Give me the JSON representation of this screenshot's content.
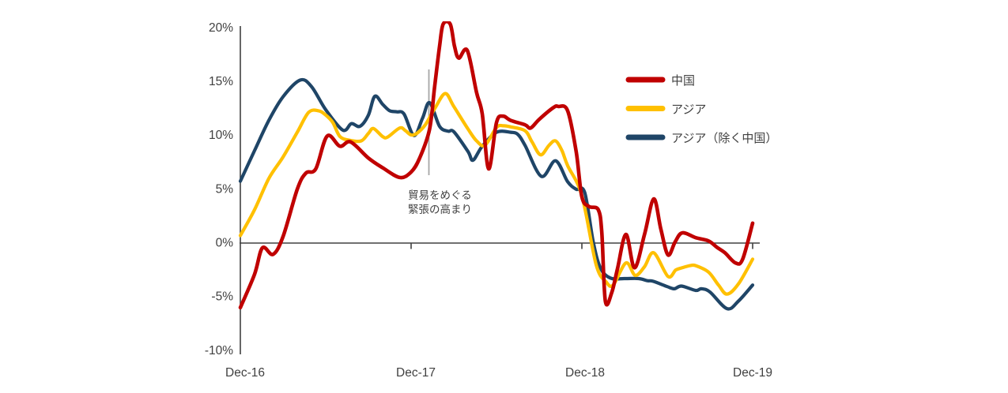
{
  "chart": {
    "y_axis": {
      "tick_labels": [
        "20%",
        "15%",
        "10%",
        "5%",
        "0%",
        "-5%",
        "-10%"
      ]
    },
    "x_axis": {
      "tick_labels": [
        "Dec-16",
        "Dec-17",
        "Dec-18",
        "Dec-19"
      ]
    },
    "annotation": {
      "text_line1": "貿易をめぐる",
      "text_line2": "緊張の高まり"
    },
    "legend": {
      "items": [
        {
          "label": "中国",
          "color": "#C00000"
        },
        {
          "label": "アジア",
          "color": "#FFC000"
        },
        {
          "label": "アジア（除く中国）",
          "color": "#1F4567"
        }
      ]
    },
    "colors": {
      "axis": "#404040",
      "annotation_line": "#A6A6A6",
      "background": "#FFFFFF"
    }
  },
  "chart_data": {
    "type": "line",
    "x_unit": "months_since_Dec-2016",
    "x_tick_months": [
      0,
      12,
      24,
      36
    ],
    "x_tick_labels": [
      "Dec-16",
      "Dec-17",
      "Dec-18",
      "Dec-19"
    ],
    "ylim": [
      -10,
      20
    ],
    "y_ticks_percent": [
      20,
      15,
      10,
      5,
      0,
      -5,
      -10
    ],
    "grid": false,
    "legend_position": "right-top",
    "annotation": {
      "label": "貿易をめぐる緊張の高まり",
      "month": 13.25
    },
    "series": [
      {
        "name": "中国",
        "color": "#C00000",
        "width": 4.6,
        "points": [
          [
            0,
            -6.0
          ],
          [
            1,
            -2.9
          ],
          [
            1.55,
            -0.45
          ],
          [
            2.3,
            -1.05
          ],
          [
            3,
            0.6
          ],
          [
            4,
            5.0
          ],
          [
            4.6,
            6.5
          ],
          [
            5.3,
            6.9
          ],
          [
            6.1,
            9.95
          ],
          [
            7,
            9.0
          ],
          [
            7.75,
            9.4
          ],
          [
            9,
            7.9
          ],
          [
            10,
            7.0
          ],
          [
            11.2,
            6.1
          ],
          [
            12,
            6.6
          ],
          [
            12.6,
            7.9
          ],
          [
            13.3,
            10.6
          ],
          [
            13.65,
            14.5
          ],
          [
            14,
            18.3
          ],
          [
            14.25,
            20.35
          ],
          [
            14.75,
            20.35
          ],
          [
            15.05,
            18.3
          ],
          [
            15.35,
            17.2
          ],
          [
            15.95,
            17.9
          ],
          [
            16.6,
            14.0
          ],
          [
            17,
            12.0
          ],
          [
            17.45,
            6.9
          ],
          [
            18,
            11.2
          ],
          [
            18.45,
            11.8
          ],
          [
            19,
            11.4
          ],
          [
            20,
            11.0
          ],
          [
            20.4,
            10.7
          ],
          [
            21,
            11.5
          ],
          [
            22,
            12.6
          ],
          [
            22.35,
            12.7
          ],
          [
            23,
            12.3
          ],
          [
            23.6,
            8.5
          ],
          [
            24,
            4.3
          ],
          [
            24.5,
            3.4
          ],
          [
            25.15,
            3.1
          ],
          [
            25.4,
            1.0
          ],
          [
            25.65,
            -5.4
          ],
          [
            26.1,
            -4.6
          ],
          [
            26.5,
            -2.4
          ],
          [
            27.1,
            0.8
          ],
          [
            27.7,
            -2.3
          ],
          [
            28.4,
            0.8
          ],
          [
            29.05,
            4.1
          ],
          [
            29.55,
            1.3
          ],
          [
            30.05,
            -1.1
          ],
          [
            30.55,
            0.1
          ],
          [
            31.05,
            0.95
          ],
          [
            32,
            0.5
          ],
          [
            32.9,
            0.2
          ],
          [
            33.5,
            -0.4
          ],
          [
            34.05,
            -0.9
          ],
          [
            34.8,
            -1.85
          ],
          [
            35.3,
            -1.5
          ],
          [
            36,
            1.85
          ]
        ]
      },
      {
        "name": "アジア",
        "color": "#FFC000",
        "width": 4.2,
        "points": [
          [
            0,
            0.7
          ],
          [
            1,
            3.1
          ],
          [
            2,
            6.0
          ],
          [
            3,
            8.0
          ],
          [
            4,
            10.3
          ],
          [
            4.8,
            12.15
          ],
          [
            5.5,
            12.3
          ],
          [
            6,
            11.9
          ],
          [
            6.5,
            11.2
          ],
          [
            7,
            9.9
          ],
          [
            7.7,
            9.55
          ],
          [
            8.5,
            9.5
          ],
          [
            9,
            10.2
          ],
          [
            9.35,
            10.65
          ],
          [
            10,
            9.9
          ],
          [
            10.35,
            9.85
          ],
          [
            11.2,
            10.7
          ],
          [
            11.6,
            10.45
          ],
          [
            12,
            10.05
          ],
          [
            12.4,
            10.2
          ],
          [
            13,
            11.0
          ],
          [
            13.7,
            12.6
          ],
          [
            14.4,
            13.9
          ],
          [
            15,
            12.7
          ],
          [
            16,
            10.6
          ],
          [
            16.6,
            9.5
          ],
          [
            17.2,
            9.1
          ],
          [
            18,
            10.75
          ],
          [
            18.5,
            10.9
          ],
          [
            19,
            10.8
          ],
          [
            20,
            10.45
          ],
          [
            20.5,
            9.4
          ],
          [
            21.1,
            8.2
          ],
          [
            21.7,
            9.1
          ],
          [
            22.15,
            9.5
          ],
          [
            22.6,
            8.6
          ],
          [
            23,
            7.2
          ],
          [
            24,
            4.4
          ],
          [
            25,
            -2.0
          ],
          [
            25.7,
            -3.6
          ],
          [
            26.2,
            -3.9
          ],
          [
            27.1,
            -1.85
          ],
          [
            27.75,
            -3.0
          ],
          [
            28.4,
            -2.2
          ],
          [
            29.05,
            -0.9
          ],
          [
            30.05,
            -3.1
          ],
          [
            30.6,
            -2.5
          ],
          [
            31.05,
            -2.3
          ],
          [
            31.6,
            -2.1
          ],
          [
            32,
            -2.1
          ],
          [
            32.9,
            -2.7
          ],
          [
            33.6,
            -3.9
          ],
          [
            34.2,
            -4.75
          ],
          [
            35,
            -3.8
          ],
          [
            36,
            -1.5
          ]
        ]
      },
      {
        "name": "アジア（除く中国）",
        "color": "#1F4567",
        "width": 4.2,
        "points": [
          [
            0,
            5.75
          ],
          [
            1,
            8.6
          ],
          [
            2,
            11.4
          ],
          [
            3,
            13.6
          ],
          [
            4.2,
            15.15
          ],
          [
            5,
            14.55
          ],
          [
            6,
            12.4
          ],
          [
            7.2,
            10.5
          ],
          [
            7.8,
            11.1
          ],
          [
            8.4,
            10.85
          ],
          [
            9,
            11.9
          ],
          [
            9.45,
            13.65
          ],
          [
            10,
            12.9
          ],
          [
            10.5,
            12.3
          ],
          [
            11,
            12.2
          ],
          [
            11.5,
            12.0
          ],
          [
            12.2,
            10.0
          ],
          [
            12.8,
            11.6
          ],
          [
            13.3,
            13.05
          ],
          [
            14,
            10.85
          ],
          [
            14.6,
            10.4
          ],
          [
            15,
            10.35
          ],
          [
            16,
            8.5
          ],
          [
            16.35,
            7.7
          ],
          [
            17,
            9.0
          ],
          [
            18,
            10.3
          ],
          [
            19,
            10.3
          ],
          [
            19.5,
            10.1
          ],
          [
            20,
            9.1
          ],
          [
            21.15,
            6.2
          ],
          [
            22.15,
            7.65
          ],
          [
            23,
            5.7
          ],
          [
            23.6,
            5.0
          ],
          [
            24.2,
            4.7
          ],
          [
            24.8,
            0.1
          ],
          [
            25.3,
            -2.3
          ],
          [
            26,
            -3.25
          ],
          [
            27,
            -3.3
          ],
          [
            28,
            -3.3
          ],
          [
            28.6,
            -3.5
          ],
          [
            29,
            -3.55
          ],
          [
            30,
            -4.05
          ],
          [
            30.5,
            -4.25
          ],
          [
            31,
            -4.0
          ],
          [
            32,
            -4.4
          ],
          [
            32.4,
            -4.25
          ],
          [
            33,
            -4.55
          ],
          [
            34.2,
            -6.1
          ],
          [
            35,
            -5.4
          ],
          [
            36,
            -3.9
          ]
        ]
      }
    ]
  }
}
